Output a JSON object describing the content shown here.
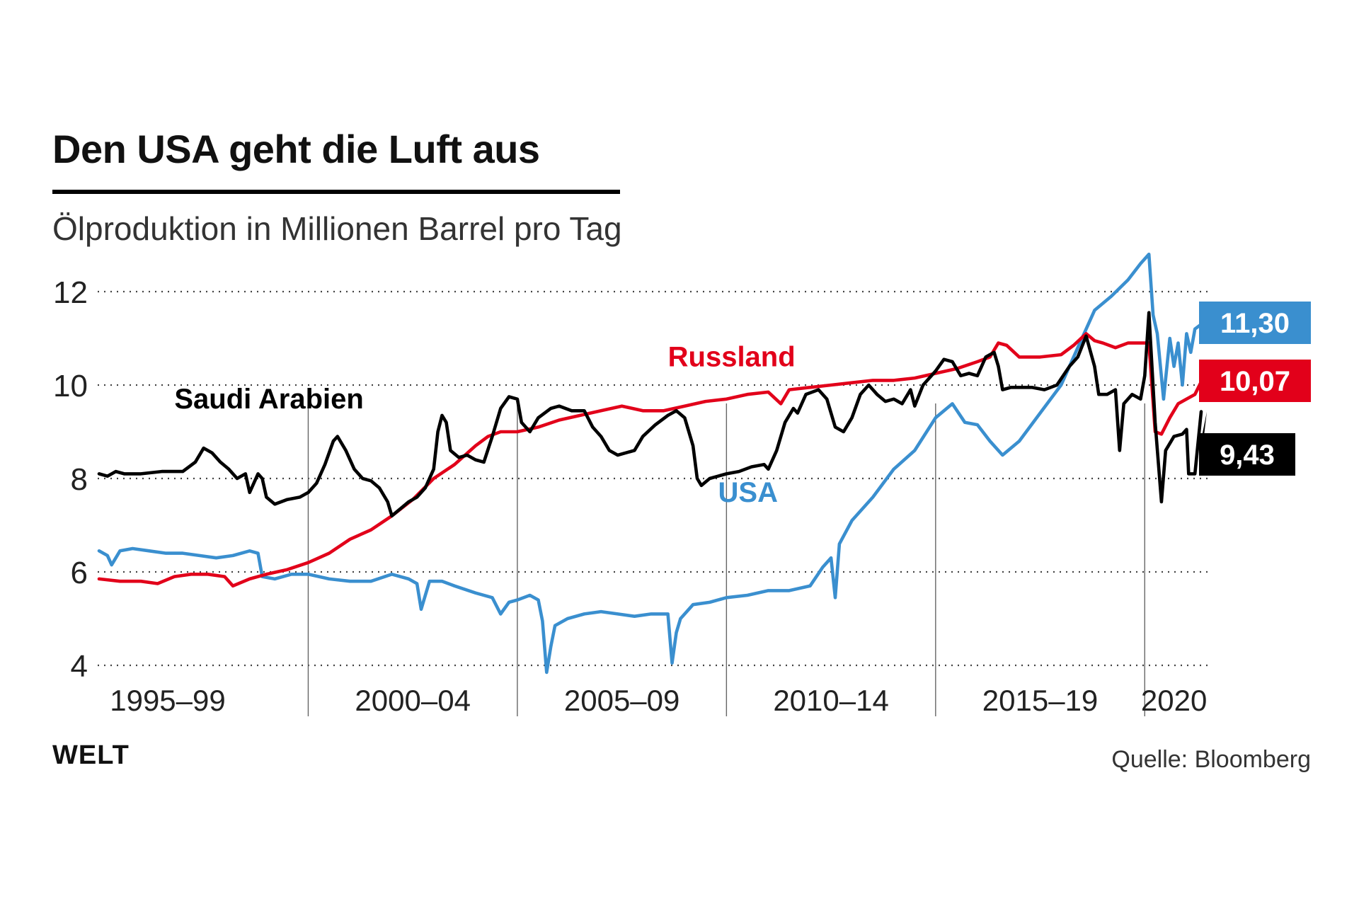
{
  "header": {
    "title": "Den USA geht die Luft aus",
    "subtitle": "Ölproduktion in Millionen Barrel pro Tag"
  },
  "footer": {
    "logo": "WELT",
    "source": "Quelle: Bloomberg"
  },
  "chart_data": {
    "type": "line",
    "title": "Den USA geht die Luft aus",
    "ylabel": "Ölproduktion in Millionen Barrel pro Tag",
    "xlim": [
      1995.0,
      2021.4
    ],
    "ylim": [
      4,
      12
    ],
    "yticks": [
      {
        "value": 4,
        "label": "4"
      },
      {
        "value": 6,
        "label": "6"
      },
      {
        "value": 8,
        "label": "8"
      },
      {
        "value": 10,
        "label": "10"
      },
      {
        "value": 12,
        "label": "12"
      }
    ],
    "x_periods": [
      {
        "label": "1995–99",
        "start": 1995.0,
        "end": 2000.0
      },
      {
        "label": "2000–04",
        "start": 2000.0,
        "end": 2005.0
      },
      {
        "label": "2005–09",
        "start": 2005.0,
        "end": 2010.0
      },
      {
        "label": "2010–14",
        "start": 2010.0,
        "end": 2015.0
      },
      {
        "label": "2015–19",
        "start": 2015.0,
        "end": 2020.0
      },
      {
        "label": "2020",
        "start": 2020.0,
        "end": 2021.4
      }
    ],
    "grid": true,
    "series": [
      {
        "name": "Saudi Arabien",
        "color": "#000000",
        "label_pos": [
          1996.8,
          9.5
        ],
        "end_label": "9,43",
        "points": [
          [
            1995.0,
            8.1
          ],
          [
            1995.2,
            8.05
          ],
          [
            1995.4,
            8.15
          ],
          [
            1995.6,
            8.1
          ],
          [
            1996.0,
            8.1
          ],
          [
            1996.5,
            8.15
          ],
          [
            1997.0,
            8.15
          ],
          [
            1997.3,
            8.35
          ],
          [
            1997.5,
            8.65
          ],
          [
            1997.7,
            8.55
          ],
          [
            1997.9,
            8.35
          ],
          [
            1998.1,
            8.2
          ],
          [
            1998.3,
            8.0
          ],
          [
            1998.5,
            8.1
          ],
          [
            1998.6,
            7.7
          ],
          [
            1998.8,
            8.1
          ],
          [
            1998.9,
            8.0
          ],
          [
            1999.0,
            7.6
          ],
          [
            1999.2,
            7.45
          ],
          [
            1999.5,
            7.55
          ],
          [
            1999.8,
            7.6
          ],
          [
            2000.0,
            7.7
          ],
          [
            2000.2,
            7.9
          ],
          [
            2000.4,
            8.3
          ],
          [
            2000.6,
            8.8
          ],
          [
            2000.7,
            8.9
          ],
          [
            2000.9,
            8.6
          ],
          [
            2001.1,
            8.2
          ],
          [
            2001.3,
            8.0
          ],
          [
            2001.5,
            7.95
          ],
          [
            2001.7,
            7.8
          ],
          [
            2001.9,
            7.5
          ],
          [
            2002.0,
            7.2
          ],
          [
            2002.2,
            7.35
          ],
          [
            2002.4,
            7.5
          ],
          [
            2002.6,
            7.6
          ],
          [
            2002.8,
            7.8
          ],
          [
            2003.0,
            8.2
          ],
          [
            2003.1,
            9.0
          ],
          [
            2003.2,
            9.35
          ],
          [
            2003.3,
            9.2
          ],
          [
            2003.4,
            8.6
          ],
          [
            2003.6,
            8.45
          ],
          [
            2003.8,
            8.5
          ],
          [
            2004.0,
            8.4
          ],
          [
            2004.2,
            8.35
          ],
          [
            2004.4,
            8.9
          ],
          [
            2004.6,
            9.5
          ],
          [
            2004.8,
            9.75
          ],
          [
            2005.0,
            9.7
          ],
          [
            2005.1,
            9.2
          ],
          [
            2005.3,
            9.0
          ],
          [
            2005.5,
            9.3
          ],
          [
            2005.8,
            9.5
          ],
          [
            2006.0,
            9.55
          ],
          [
            2006.3,
            9.45
          ],
          [
            2006.6,
            9.45
          ],
          [
            2006.8,
            9.1
          ],
          [
            2007.0,
            8.9
          ],
          [
            2007.2,
            8.6
          ],
          [
            2007.4,
            8.5
          ],
          [
            2007.6,
            8.55
          ],
          [
            2007.8,
            8.6
          ],
          [
            2008.0,
            8.9
          ],
          [
            2008.3,
            9.15
          ],
          [
            2008.6,
            9.35
          ],
          [
            2008.8,
            9.45
          ],
          [
            2009.0,
            9.3
          ],
          [
            2009.2,
            8.7
          ],
          [
            2009.3,
            8.0
          ],
          [
            2009.4,
            7.85
          ],
          [
            2009.6,
            8.0
          ],
          [
            2009.8,
            8.05
          ],
          [
            2010.0,
            8.1
          ],
          [
            2010.3,
            8.15
          ],
          [
            2010.6,
            8.25
          ],
          [
            2010.9,
            8.3
          ],
          [
            2011.0,
            8.2
          ],
          [
            2011.2,
            8.6
          ],
          [
            2011.4,
            9.2
          ],
          [
            2011.6,
            9.5
          ],
          [
            2011.7,
            9.4
          ],
          [
            2011.9,
            9.8
          ],
          [
            2012.2,
            9.9
          ],
          [
            2012.4,
            9.7
          ],
          [
            2012.6,
            9.1
          ],
          [
            2012.8,
            9.0
          ],
          [
            2013.0,
            9.3
          ],
          [
            2013.2,
            9.8
          ],
          [
            2013.4,
            10.0
          ],
          [
            2013.6,
            9.8
          ],
          [
            2013.8,
            9.65
          ],
          [
            2014.0,
            9.7
          ],
          [
            2014.2,
            9.6
          ],
          [
            2014.4,
            9.9
          ],
          [
            2014.5,
            9.55
          ],
          [
            2014.7,
            10.0
          ],
          [
            2015.0,
            10.3
          ],
          [
            2015.2,
            10.55
          ],
          [
            2015.4,
            10.5
          ],
          [
            2015.6,
            10.2
          ],
          [
            2015.8,
            10.25
          ],
          [
            2016.0,
            10.2
          ],
          [
            2016.2,
            10.6
          ],
          [
            2016.4,
            10.7
          ],
          [
            2016.5,
            10.4
          ],
          [
            2016.6,
            9.9
          ],
          [
            2016.8,
            9.95
          ],
          [
            2017.0,
            9.95
          ],
          [
            2017.3,
            9.95
          ],
          [
            2017.6,
            9.9
          ],
          [
            2017.9,
            10.0
          ],
          [
            2018.2,
            10.4
          ],
          [
            2018.4,
            10.6
          ],
          [
            2018.6,
            11.05
          ],
          [
            2018.8,
            10.4
          ],
          [
            2018.9,
            9.8
          ],
          [
            2019.1,
            9.8
          ],
          [
            2019.3,
            9.9
          ],
          [
            2019.4,
            8.6
          ],
          [
            2019.5,
            9.6
          ],
          [
            2019.7,
            9.8
          ],
          [
            2019.9,
            9.7
          ],
          [
            2020.0,
            10.2
          ],
          [
            2020.1,
            11.55
          ],
          [
            2020.25,
            9.2
          ],
          [
            2020.4,
            7.5
          ],
          [
            2020.5,
            8.6
          ],
          [
            2020.7,
            8.9
          ],
          [
            2020.9,
            8.95
          ],
          [
            2021.0,
            9.05
          ],
          [
            2021.05,
            8.1
          ],
          [
            2021.2,
            8.1
          ],
          [
            2021.35,
            9.43
          ]
        ]
      },
      {
        "name": "Russland",
        "color": "#e2001a",
        "label_pos": [
          2008.6,
          10.4
        ],
        "end_label": "10,07",
        "points": [
          [
            1995.0,
            5.85
          ],
          [
            1995.5,
            5.8
          ],
          [
            1996.0,
            5.8
          ],
          [
            1996.4,
            5.75
          ],
          [
            1996.8,
            5.9
          ],
          [
            1997.2,
            5.95
          ],
          [
            1997.6,
            5.95
          ],
          [
            1998.0,
            5.9
          ],
          [
            1998.2,
            5.7
          ],
          [
            1998.6,
            5.85
          ],
          [
            1999.0,
            5.95
          ],
          [
            1999.5,
            6.05
          ],
          [
            2000.0,
            6.2
          ],
          [
            2000.5,
            6.4
          ],
          [
            2001.0,
            6.7
          ],
          [
            2001.5,
            6.9
          ],
          [
            2002.0,
            7.2
          ],
          [
            2002.5,
            7.55
          ],
          [
            2003.0,
            8.0
          ],
          [
            2003.5,
            8.3
          ],
          [
            2004.0,
            8.7
          ],
          [
            2004.3,
            8.9
          ],
          [
            2004.6,
            9.0
          ],
          [
            2005.0,
            9.0
          ],
          [
            2005.5,
            9.1
          ],
          [
            2006.0,
            9.25
          ],
          [
            2006.5,
            9.35
          ],
          [
            2007.0,
            9.45
          ],
          [
            2007.5,
            9.55
          ],
          [
            2008.0,
            9.45
          ],
          [
            2008.5,
            9.45
          ],
          [
            2009.0,
            9.55
          ],
          [
            2009.5,
            9.65
          ],
          [
            2010.0,
            9.7
          ],
          [
            2010.5,
            9.8
          ],
          [
            2011.0,
            9.85
          ],
          [
            2011.3,
            9.6
          ],
          [
            2011.5,
            9.9
          ],
          [
            2012.0,
            9.95
          ],
          [
            2012.5,
            10.0
          ],
          [
            2013.0,
            10.05
          ],
          [
            2013.5,
            10.1
          ],
          [
            2014.0,
            10.1
          ],
          [
            2014.5,
            10.15
          ],
          [
            2015.0,
            10.25
          ],
          [
            2015.5,
            10.35
          ],
          [
            2016.0,
            10.5
          ],
          [
            2016.3,
            10.6
          ],
          [
            2016.5,
            10.9
          ],
          [
            2016.7,
            10.85
          ],
          [
            2017.0,
            10.6
          ],
          [
            2017.5,
            10.6
          ],
          [
            2018.0,
            10.65
          ],
          [
            2018.3,
            10.85
          ],
          [
            2018.6,
            11.1
          ],
          [
            2018.8,
            10.95
          ],
          [
            2019.0,
            10.9
          ],
          [
            2019.3,
            10.8
          ],
          [
            2019.6,
            10.9
          ],
          [
            2019.9,
            10.9
          ],
          [
            2020.1,
            10.9
          ],
          [
            2020.25,
            9.0
          ],
          [
            2020.4,
            8.95
          ],
          [
            2020.6,
            9.3
          ],
          [
            2020.8,
            9.6
          ],
          [
            2021.0,
            9.7
          ],
          [
            2021.2,
            9.8
          ],
          [
            2021.35,
            10.07
          ]
        ]
      },
      {
        "name": "USA",
        "color": "#3a8fcf",
        "label_pos": [
          2009.8,
          7.5
        ],
        "end_label": "11,30",
        "points": [
          [
            1995.0,
            6.45
          ],
          [
            1995.2,
            6.35
          ],
          [
            1995.3,
            6.15
          ],
          [
            1995.5,
            6.45
          ],
          [
            1995.8,
            6.5
          ],
          [
            1996.2,
            6.45
          ],
          [
            1996.6,
            6.4
          ],
          [
            1997.0,
            6.4
          ],
          [
            1997.4,
            6.35
          ],
          [
            1997.8,
            6.3
          ],
          [
            1998.2,
            6.35
          ],
          [
            1998.6,
            6.45
          ],
          [
            1998.8,
            6.4
          ],
          [
            1998.9,
            5.9
          ],
          [
            1999.2,
            5.85
          ],
          [
            1999.6,
            5.95
          ],
          [
            2000.0,
            5.95
          ],
          [
            2000.5,
            5.85
          ],
          [
            2001.0,
            5.8
          ],
          [
            2001.5,
            5.8
          ],
          [
            2002.0,
            5.95
          ],
          [
            2002.4,
            5.85
          ],
          [
            2002.6,
            5.75
          ],
          [
            2002.7,
            5.2
          ],
          [
            2002.9,
            5.8
          ],
          [
            2003.2,
            5.8
          ],
          [
            2003.5,
            5.7
          ],
          [
            2004.0,
            5.55
          ],
          [
            2004.4,
            5.45
          ],
          [
            2004.6,
            5.1
          ],
          [
            2004.8,
            5.35
          ],
          [
            2005.0,
            5.4
          ],
          [
            2005.3,
            5.5
          ],
          [
            2005.5,
            5.4
          ],
          [
            2005.6,
            4.95
          ],
          [
            2005.7,
            3.85
          ],
          [
            2005.8,
            4.4
          ],
          [
            2005.9,
            4.85
          ],
          [
            2006.2,
            5.0
          ],
          [
            2006.6,
            5.1
          ],
          [
            2007.0,
            5.15
          ],
          [
            2007.4,
            5.1
          ],
          [
            2007.8,
            5.05
          ],
          [
            2008.2,
            5.1
          ],
          [
            2008.6,
            5.1
          ],
          [
            2008.7,
            4.05
          ],
          [
            2008.8,
            4.7
          ],
          [
            2008.9,
            5.0
          ],
          [
            2009.2,
            5.3
          ],
          [
            2009.6,
            5.35
          ],
          [
            2010.0,
            5.45
          ],
          [
            2010.5,
            5.5
          ],
          [
            2011.0,
            5.6
          ],
          [
            2011.5,
            5.6
          ],
          [
            2012.0,
            5.7
          ],
          [
            2012.3,
            6.1
          ],
          [
            2012.5,
            6.3
          ],
          [
            2012.6,
            5.45
          ],
          [
            2012.7,
            6.6
          ],
          [
            2013.0,
            7.1
          ],
          [
            2013.5,
            7.6
          ],
          [
            2014.0,
            8.2
          ],
          [
            2014.5,
            8.6
          ],
          [
            2015.0,
            9.3
          ],
          [
            2015.4,
            9.6
          ],
          [
            2015.7,
            9.2
          ],
          [
            2016.0,
            9.15
          ],
          [
            2016.3,
            8.8
          ],
          [
            2016.6,
            8.5
          ],
          [
            2017.0,
            8.8
          ],
          [
            2017.5,
            9.4
          ],
          [
            2018.0,
            10.0
          ],
          [
            2018.4,
            10.8
          ],
          [
            2018.8,
            11.6
          ],
          [
            2019.2,
            11.9
          ],
          [
            2019.6,
            12.25
          ],
          [
            2019.9,
            12.6
          ],
          [
            2020.1,
            12.8
          ],
          [
            2020.2,
            11.5
          ],
          [
            2020.3,
            11.1
          ],
          [
            2020.45,
            9.7
          ],
          [
            2020.6,
            11.0
          ],
          [
            2020.7,
            10.4
          ],
          [
            2020.8,
            10.9
          ],
          [
            2020.9,
            10.0
          ],
          [
            2021.0,
            11.1
          ],
          [
            2021.1,
            10.7
          ],
          [
            2021.2,
            11.2
          ],
          [
            2021.35,
            11.3
          ]
        ]
      }
    ]
  }
}
